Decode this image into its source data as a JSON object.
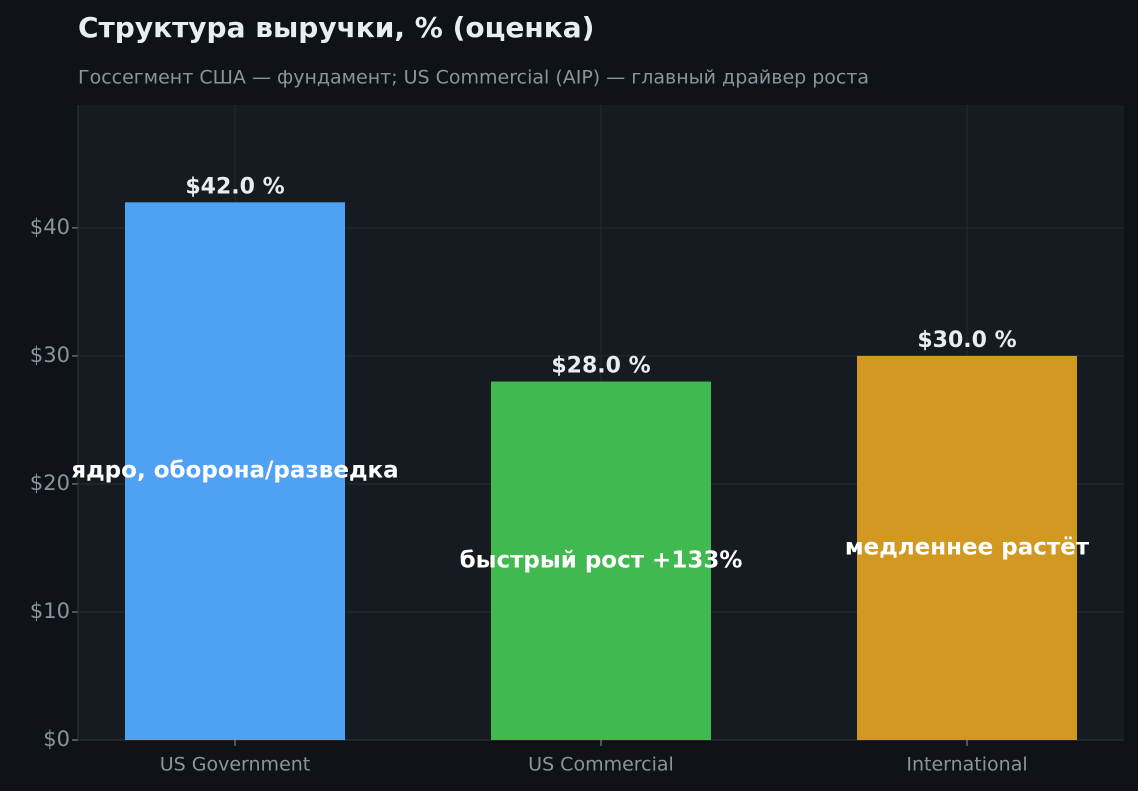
{
  "chart_data": {
    "type": "bar",
    "title": "Структура выручки, % (оценка)",
    "subtitle": "Госсегмент США — фундамент; US Commercial (AIP) — главный драйвер роста",
    "categories": [
      "US Government",
      "US Commercial",
      "International"
    ],
    "values": [
      42.0,
      28.0,
      30.0
    ],
    "value_labels": [
      "$42.0 %",
      "$28.0 %",
      "$30.0 %"
    ],
    "annotations": [
      "ядро, оборона/разведка",
      "быстрый рост +133%",
      "медленнее растёт"
    ],
    "colors": [
      "#4ea1f3",
      "#3fb950",
      "#d29922"
    ],
    "ylim": [
      0,
      49.6
    ],
    "yticks": [
      {
        "value": 0,
        "label": "$0"
      },
      {
        "value": 10,
        "label": "$10"
      },
      {
        "value": 20,
        "label": "$20"
      },
      {
        "value": 30,
        "label": "$30"
      },
      {
        "value": 40,
        "label": "$40"
      }
    ],
    "grid": true
  }
}
